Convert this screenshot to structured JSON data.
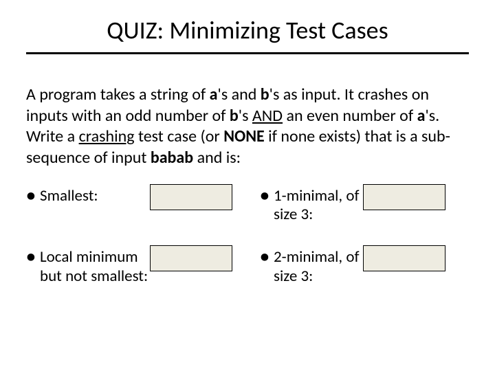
{
  "title": "QUIZ: Minimizing Test Cases",
  "prompt_html": "A program takes a string of <b>a</b>'s and <b>b</b>'s as input. It crashes on inputs with an odd number of <b>b</b>'s <span class=\"u\">AND</span> an even number of <b>a</b>'s. Write a <span class=\"u\">crashing</span> test case (or <b>NONE</b> if none exists) that is a sub-sequence of input <b>babab</b> and is:",
  "items": {
    "q1": "Smallest:",
    "q2": "Local minimum but not smallest:",
    "q3": "1-minimal, of size 3:",
    "q4": "2-minimal, of size 3:"
  },
  "colors": {
    "input_bg": "#eeece1",
    "input_border": "#000000",
    "rule": "#000000",
    "text": "#000000",
    "bg": "#ffffff"
  },
  "font_sizes": {
    "title": 36,
    "prompt": 24,
    "items": 23
  }
}
